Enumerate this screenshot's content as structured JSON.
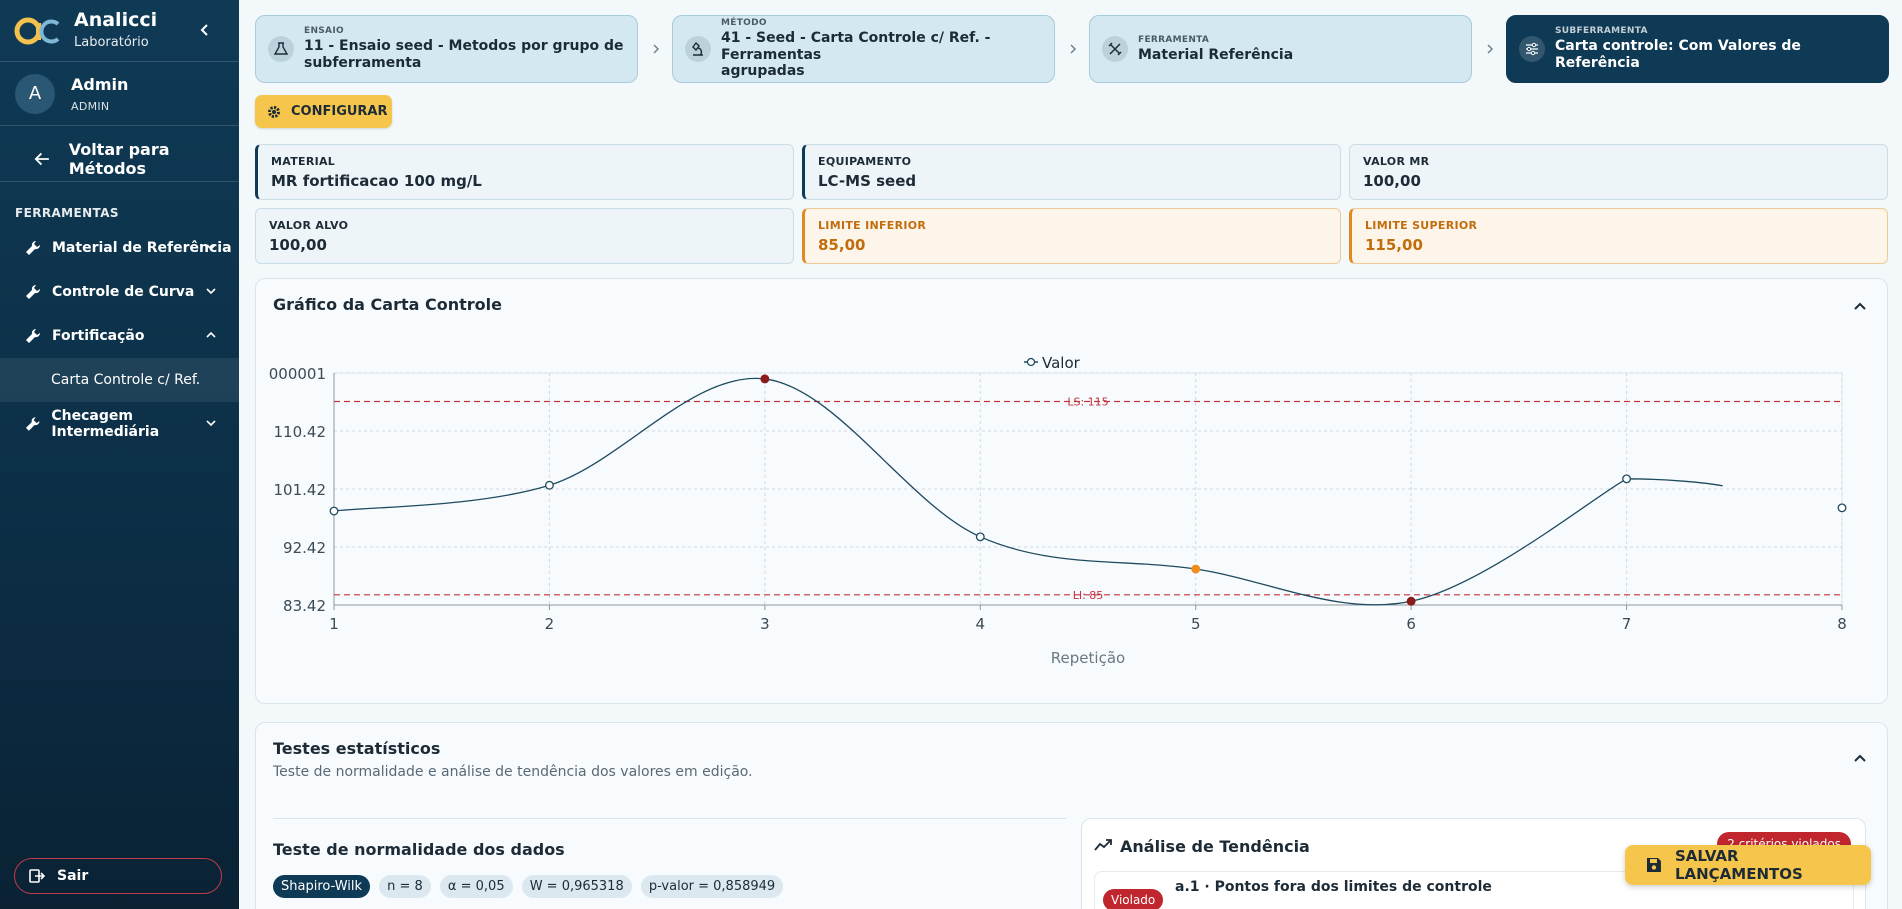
{
  "brand": {
    "name": "Analicci",
    "subtitle": "Laboratório"
  },
  "user": {
    "initial": "A",
    "name": "Admin",
    "role": "ADMIN"
  },
  "sidebar": {
    "back_label": "Voltar para Métodos",
    "section_title": "FERRAMENTAS",
    "items": [
      {
        "label": "Material de Referência",
        "icon": "wrench-icon",
        "expanded": false
      },
      {
        "label": "Controle de Curva",
        "icon": "wrench-icon",
        "expanded": false
      },
      {
        "label": "Fortificação",
        "icon": "wrench-icon",
        "expanded": true
      },
      {
        "label": "Checagem Intermediária",
        "icon": "wrench-icon",
        "expanded": false
      }
    ],
    "subitem": "Carta Controle c/ Ref.",
    "logout_label": "Sair"
  },
  "steps": [
    {
      "label": "ENSAIO",
      "value_line1": "11 - Ensaio seed - Metodos por grupo de",
      "value_line2": "subferramenta",
      "icon": "flask-icon"
    },
    {
      "label": "MÉTODO",
      "value_line1": "41 - Seed - Carta Controle c/ Ref. - Ferramentas",
      "value_line2": "agrupadas",
      "icon": "microscope-icon"
    },
    {
      "label": "FERRAMENTA",
      "value_line1": "Material Referência",
      "value_line2": "",
      "icon": "tools-icon"
    },
    {
      "label": "SUBFERRAMENTA",
      "value_line1": "Carta controle: Com Valores de Referência",
      "value_line2": "",
      "icon": "sliders-icon"
    }
  ],
  "config_label": "CONFIGURAR",
  "info": {
    "material": {
      "label": "MATERIAL",
      "value": "MR fortificacao 100 mg/L"
    },
    "equipamento": {
      "label": "EQUIPAMENTO",
      "value": "LC-MS seed"
    },
    "valor_mr": {
      "label": "VALOR MR",
      "value": "100,00"
    },
    "valor_alvo": {
      "label": "VALOR ALVO",
      "value": "100,00"
    },
    "limite_inferior": {
      "label": "LIMITE INFERIOR",
      "value": "85,00"
    },
    "limite_superior": {
      "label": "LIMITE SUPERIOR",
      "value": "115,00"
    }
  },
  "chart_card": {
    "title": "Gráfico da Carta Controle"
  },
  "chart_data": {
    "type": "line",
    "title": "",
    "xlabel": "Repetição",
    "ylabel": "",
    "x": [
      1,
      2,
      3,
      4,
      5,
      6,
      7,
      8
    ],
    "series": [
      {
        "name": "Valor",
        "values": [
          98.0,
          102.0,
          118.5,
          94.0,
          89.0,
          84.0,
          103.0,
          98.5
        ],
        "point_status": [
          "normal",
          "normal",
          "violated",
          "normal",
          "warning",
          "violated",
          "normal",
          "normal"
        ]
      }
    ],
    "yticks": [
      "83.42",
      "92.42",
      "101.42",
      "110.42",
      "000001"
    ],
    "xticks": [
      "1",
      "2",
      "3",
      "4",
      "5",
      "6",
      "7",
      "8"
    ],
    "ylim": [
      83.42,
      119.42
    ],
    "xlim": [
      1,
      8
    ],
    "reference_lines": [
      {
        "label": "LS: 115",
        "value": 115
      },
      {
        "label": "LI: 85",
        "value": 85
      }
    ],
    "grid": true,
    "legend": "top",
    "colors": {
      "line": "#1e4a5f",
      "limit": "#c4333e",
      "violated": "#8b1a1a",
      "warning": "#f08c1a"
    }
  },
  "stats_card": {
    "title": "Testes estatísticos",
    "subtitle": "Teste de normalidade e análise de tendência dos valores em edição.",
    "normality_title": "Teste de normalidade dos dados",
    "pills": [
      "Shapiro-Wilk",
      "n = 8",
      "α = 0,05",
      "W = 0,965318",
      "p-valor = 0,858949"
    ],
    "trend_title": "Análise de Tendência",
    "trend_badge": "2 critérios violados",
    "criterion_badge": "Violado",
    "criterion_text": "a.1 · Pontos fora dos limites de controle"
  },
  "save_label": "SALVAR LANÇAMENTOS"
}
